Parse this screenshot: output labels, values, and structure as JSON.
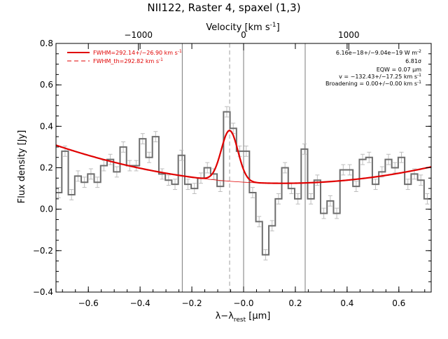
{
  "chart_data": {
    "type": "line",
    "title": "NII122, Raster 4, spaxel (1,3)",
    "xlabel": "λ−λ",
    "xlabel_sub": "rest",
    "xlabel_unit": " [μm]",
    "ylabel": "Flux density [Jy]",
    "top_xlabel": "Velocity [km s",
    "top_xlabel_sup": "-1",
    "top_xlabel_end": "]",
    "xlim": [
      -0.725,
      0.725
    ],
    "ylim": [
      -0.4,
      0.8
    ],
    "grid": false,
    "legend_position": "top-left",
    "x_ticks": [
      {
        "v": -0.6,
        "label": "−0.6"
      },
      {
        "v": -0.4,
        "label": "−0.4"
      },
      {
        "v": -0.2,
        "label": "−0.2"
      },
      {
        "v": 0.0,
        "label": "−0.0"
      },
      {
        "v": 0.2,
        "label": "0.2"
      },
      {
        "v": 0.4,
        "label": "0.4"
      },
      {
        "v": 0.6,
        "label": "0.6"
      }
    ],
    "y_ticks": [
      {
        "v": -0.4,
        "label": "−0.4"
      },
      {
        "v": -0.2,
        "label": "−0.2"
      },
      {
        "v": 0.0,
        "label": "0.0"
      },
      {
        "v": 0.2,
        "label": "0.2"
      },
      {
        "v": 0.4,
        "label": "0.4"
      },
      {
        "v": 0.6,
        "label": "0.6"
      },
      {
        "v": 0.8,
        "label": "0.8"
      }
    ],
    "top_ticks": [
      {
        "v": -0.4066,
        "label": "−1000"
      },
      {
        "v": 0.0,
        "label": "0"
      },
      {
        "v": 0.4066,
        "label": "1000"
      }
    ],
    "vertical_lines": [
      -0.237,
      0.0,
      0.238
    ],
    "line_center": -0.054,
    "data_step": {
      "x": [
        -0.715,
        -0.69,
        -0.665,
        -0.64,
        -0.615,
        -0.59,
        -0.565,
        -0.54,
        -0.515,
        -0.49,
        -0.465,
        -0.44,
        -0.415,
        -0.39,
        -0.365,
        -0.34,
        -0.315,
        -0.29,
        -0.265,
        -0.24,
        -0.215,
        -0.19,
        -0.165,
        -0.14,
        -0.115,
        -0.09,
        -0.065,
        -0.04,
        -0.015,
        0.01,
        0.035,
        0.06,
        0.085,
        0.11,
        0.135,
        0.16,
        0.185,
        0.21,
        0.235,
        0.26,
        0.285,
        0.31,
        0.335,
        0.36,
        0.385,
        0.41,
        0.435,
        0.46,
        0.485,
        0.51,
        0.535,
        0.56,
        0.585,
        0.61,
        0.635,
        0.66,
        0.685,
        0.71
      ],
      "y": [
        0.08,
        0.28,
        0.07,
        0.16,
        0.13,
        0.17,
        0.13,
        0.21,
        0.24,
        0.18,
        0.3,
        0.21,
        0.21,
        0.34,
        0.25,
        0.35,
        0.17,
        0.14,
        0.12,
        0.26,
        0.12,
        0.1,
        0.15,
        0.2,
        0.17,
        0.11,
        0.47,
        0.39,
        0.28,
        0.28,
        0.08,
        -0.06,
        -0.22,
        -0.08,
        0.05,
        0.2,
        0.1,
        0.05,
        0.29,
        0.05,
        0.14,
        -0.02,
        0.04,
        -0.02,
        0.19,
        0.19,
        0.11,
        0.24,
        0.25,
        0.12,
        0.18,
        0.24,
        0.2,
        0.25,
        0.12,
        0.17,
        0.14,
        0.05
      ],
      "err": 0.025
    },
    "series": [
      {
        "name": "FWHM=292.14+/−26.90 km s",
        "name_sup": "-1",
        "color": "#e00000",
        "style": "solid",
        "model": {
          "a": 0.00109,
          "b": 0.11,
          "c": 0.125,
          "amp": 0.245,
          "center": -0.054,
          "sigma": 0.0322
        }
      },
      {
        "name": "FWHM_th=292.82 km s",
        "name_sup": "-1",
        "color": "#e00000",
        "style": "dashed"
      }
    ],
    "annotations": [
      {
        "text": "6.16e−18+/−9.04e−19 W m",
        "sup": "-2"
      },
      {
        "text": "6.81σ",
        "sup": ""
      },
      {
        "text": "EQW = 0.07 μm",
        "sup": ""
      },
      {
        "text": "v = −132.43+/−17.25 km s",
        "sup": "-1"
      },
      {
        "text": "Broadening = 0.00+/−0.00 km s",
        "sup": "-1"
      }
    ]
  }
}
